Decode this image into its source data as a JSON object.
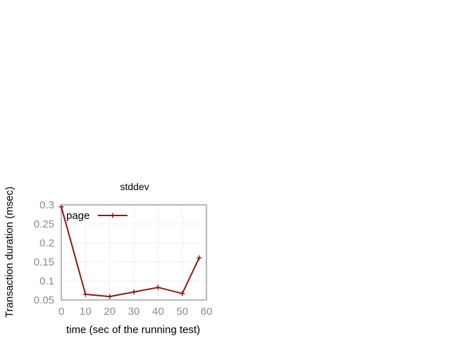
{
  "chart_data": {
    "type": "line",
    "title": "stddev",
    "xlabel": "time (sec of the running test)",
    "ylabel": "Transaction duration (msec)",
    "xlim": [
      0,
      60
    ],
    "ylim": [
      0.05,
      0.3
    ],
    "xticks": [
      "0",
      "10",
      "20",
      "30",
      "40",
      "50",
      "60"
    ],
    "yticks": [
      "0.05",
      "0.1",
      "0.15",
      "0.2",
      "0.25",
      "0.3"
    ],
    "grid": true,
    "legend_position": "top-left",
    "series": [
      {
        "name": "page",
        "color": "#8b1a1a",
        "marker": "plus",
        "x": [
          0,
          10,
          20,
          30,
          40,
          50,
          57
        ],
        "y": [
          0.295,
          0.065,
          0.059,
          0.071,
          0.083,
          0.067,
          0.161
        ]
      }
    ]
  }
}
